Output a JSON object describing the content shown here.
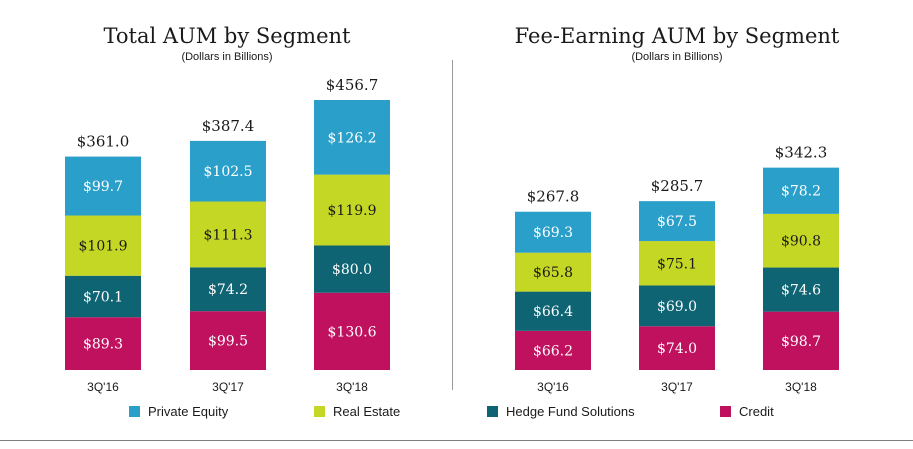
{
  "segments": [
    {
      "name": "Private Equity",
      "color": "#2a9fc9"
    },
    {
      "name": "Real Estate",
      "color": "#c4d724"
    },
    {
      "name": "Hedge Fund Solutions",
      "color": "#0f6473"
    },
    {
      "name": "Credit",
      "color": "#c0115f"
    }
  ],
  "chart_data": [
    {
      "type": "bar",
      "stacked": true,
      "title": "Total AUM by Segment",
      "subtitle": "(Dollars in Billions)",
      "categories": [
        "3Q'16",
        "3Q'17",
        "3Q'18"
      ],
      "totals": [
        "$361.0",
        "$387.4",
        "$456.7"
      ],
      "series": [
        {
          "name": "Credit",
          "values": [
            89.3,
            99.5,
            130.6
          ],
          "labels": [
            "$89.3",
            "$99.5",
            "$130.6"
          ]
        },
        {
          "name": "Hedge Fund Solutions",
          "values": [
            70.1,
            74.2,
            80.0
          ],
          "labels": [
            "$70.1",
            "$74.2",
            "$80.0"
          ]
        },
        {
          "name": "Real Estate",
          "values": [
            101.9,
            111.3,
            119.9
          ],
          "labels": [
            "$101.9",
            "$111.3",
            "$119.9"
          ]
        },
        {
          "name": "Private Equity",
          "values": [
            99.7,
            102.5,
            126.2
          ],
          "labels": [
            "$99.7",
            "$102.5",
            "$126.2"
          ]
        }
      ]
    },
    {
      "type": "bar",
      "stacked": true,
      "title": "Fee-Earning AUM by Segment",
      "subtitle": "(Dollars in Billions)",
      "categories": [
        "3Q'16",
        "3Q'17",
        "3Q'18"
      ],
      "totals": [
        "$267.8",
        "$285.7",
        "$342.3"
      ],
      "series": [
        {
          "name": "Credit",
          "values": [
            66.2,
            74.0,
            98.7
          ],
          "labels": [
            "$66.2",
            "$74.0",
            "$98.7"
          ]
        },
        {
          "name": "Hedge Fund Solutions",
          "values": [
            66.4,
            69.0,
            74.6
          ],
          "labels": [
            "$66.4",
            "$69.0",
            "$74.6"
          ]
        },
        {
          "name": "Real Estate",
          "values": [
            65.8,
            75.1,
            90.8
          ],
          "labels": [
            "$65.8",
            "$75.1",
            "$90.8"
          ]
        },
        {
          "name": "Private Equity",
          "values": [
            69.3,
            67.5,
            78.2
          ],
          "labels": [
            "$69.3",
            "$67.5",
            "$78.2"
          ]
        }
      ]
    }
  ]
}
